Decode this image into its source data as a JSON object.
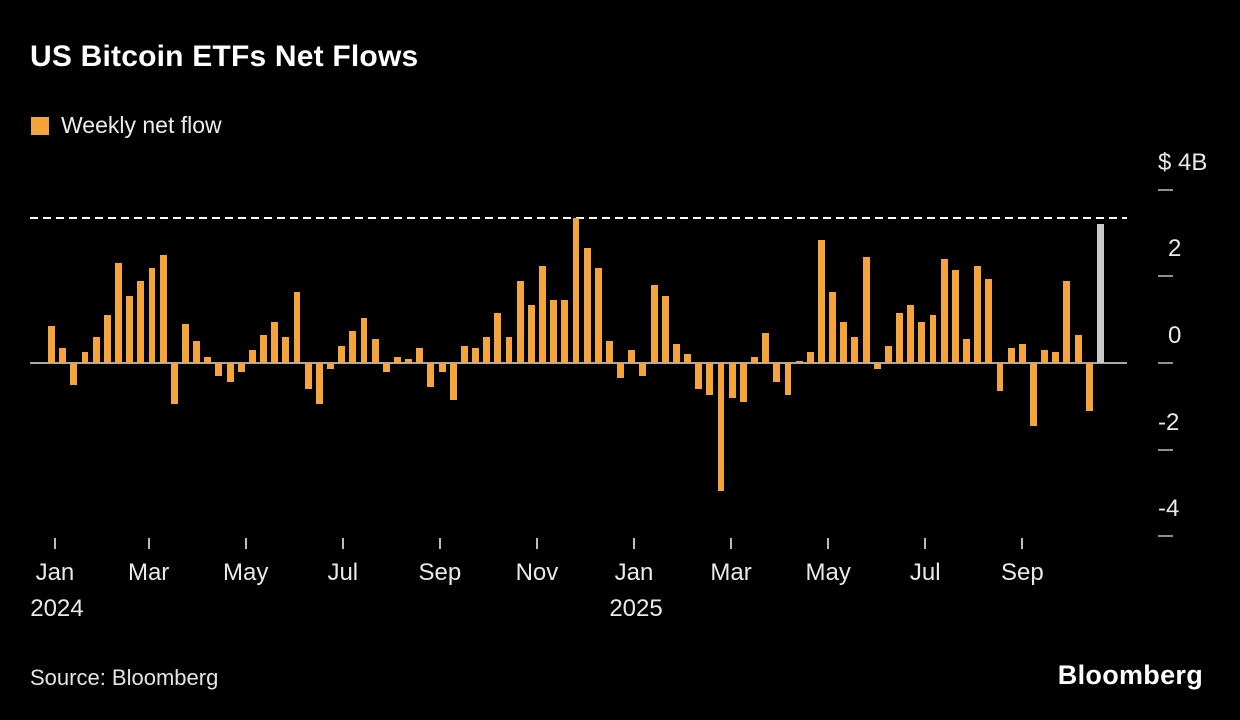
{
  "header": {
    "title": "US Bitcoin ETFs Net Flows"
  },
  "legend": {
    "label": "Weekly net flow",
    "swatch_color": "#f5a43c"
  },
  "chart_data": {
    "type": "bar",
    "title": "US Bitcoin ETFs Net Flows",
    "series_name": "Weekly net flow",
    "unit": "$B (billions of US dollars, weekly net flow)",
    "bar_color": "#f5a43c",
    "current_week_index": 94,
    "current_week_color": "#c9c9c9",
    "values": [
      0.85,
      0.35,
      -0.5,
      0.25,
      0.6,
      1.1,
      2.3,
      1.55,
      1.9,
      2.2,
      2.5,
      -0.95,
      0.9,
      0.5,
      0.15,
      -0.3,
      -0.45,
      -0.2,
      0.3,
      0.65,
      0.95,
      0.6,
      1.65,
      -0.6,
      -0.95,
      -0.15,
      0.4,
      0.75,
      1.05,
      0.55,
      -0.2,
      0.15,
      0.1,
      0.35,
      -0.55,
      -0.2,
      -0.85,
      0.4,
      0.35,
      0.6,
      1.15,
      0.6,
      1.9,
      1.35,
      2.25,
      1.45,
      1.45,
      3.35,
      2.65,
      2.2,
      0.5,
      -0.35,
      0.3,
      -0.3,
      1.8,
      1.55,
      0.45,
      0.2,
      -0.6,
      -0.75,
      -2.95,
      -0.8,
      -0.9,
      0.15,
      0.7,
      -0.45,
      -0.75,
      0.05,
      0.25,
      2.85,
      1.65,
      0.95,
      0.6,
      2.45,
      -0.15,
      0.4,
      1.15,
      1.35,
      0.95,
      1.1,
      2.4,
      2.15,
      0.55,
      2.25,
      1.95,
      -0.65,
      0.35,
      0.45,
      -1.45,
      0.3,
      0.25,
      1.9,
      0.65,
      -1.1,
      3.2
    ],
    "reference_line": {
      "value": 3.35,
      "style": "dashed",
      "color": "#ffffff"
    },
    "y_axis": {
      "position": "right",
      "ylim": [
        -4.7,
        4.7
      ],
      "ticks": [
        4,
        2,
        0,
        -2,
        -4
      ],
      "labels": [
        "$ 4B",
        "2",
        "0",
        "-2",
        "-4"
      ]
    },
    "x_axis": {
      "ticks": [
        {
          "label": "Jan",
          "sub": "2024",
          "week": 0.3
        },
        {
          "label": "Mar",
          "week": 8.7
        },
        {
          "label": "May",
          "week": 17.4
        },
        {
          "label": "Jul",
          "week": 26.1
        },
        {
          "label": "Sep",
          "week": 34.8
        },
        {
          "label": "Nov",
          "week": 43.5
        },
        {
          "label": "Jan",
          "sub": "2025",
          "week": 52.2
        },
        {
          "label": "Mar",
          "week": 60.9
        },
        {
          "label": "May",
          "week": 69.6
        },
        {
          "label": "Jul",
          "week": 78.3
        },
        {
          "label": "Sep",
          "week": 87.0
        }
      ]
    },
    "grid": false,
    "legend_position": "top-left"
  },
  "footer": {
    "source": "Source: Bloomberg",
    "brand": "Bloomberg"
  }
}
